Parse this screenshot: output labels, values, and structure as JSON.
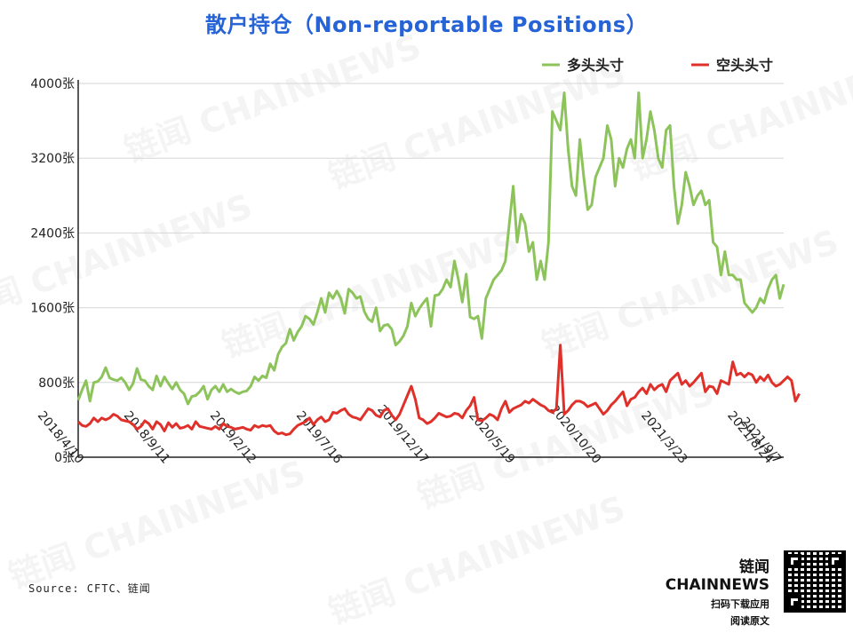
{
  "title": "散户持仓（Non-reportable Positions）",
  "chart_data": {
    "type": "line",
    "ylim": [
      0,
      4000
    ],
    "y_ticks": [
      "0张",
      "800张",
      "1600张",
      "2400张",
      "3200张",
      "4000张"
    ],
    "y_tick_values": [
      0,
      800,
      1600,
      2400,
      3200,
      4000
    ],
    "x_tick_labels": [
      "2018/4/10",
      "2018/9/11",
      "2019/2/12",
      "2019/7/16",
      "2019/12/17",
      "2020/5/19",
      "2020/10/20",
      "2021/3/23",
      "2021/8/24",
      "2021/9/7"
    ],
    "x_tick_index": [
      0,
      22,
      44,
      66,
      88,
      110,
      132,
      154,
      176,
      178
    ],
    "legend_position": "top-right",
    "grid": "horizontal",
    "colors": {
      "long": "#8dc35b",
      "short": "#e0302a"
    },
    "series": [
      {
        "name": "多头头寸",
        "values": [
          610,
          720,
          820,
          600,
          800,
          810,
          860,
          960,
          850,
          830,
          820,
          850,
          800,
          720,
          790,
          950,
          830,
          820,
          760,
          720,
          870,
          760,
          860,
          790,
          730,
          800,
          720,
          680,
          570,
          650,
          660,
          700,
          760,
          620,
          720,
          760,
          700,
          780,
          700,
          730,
          700,
          680,
          700,
          710,
          760,
          860,
          820,
          870,
          850,
          1000,
          930,
          1100,
          1180,
          1220,
          1370,
          1250,
          1340,
          1400,
          1510,
          1480,
          1420,
          1550,
          1700,
          1550,
          1760,
          1700,
          1780,
          1700,
          1540,
          1800,
          1760,
          1700,
          1720,
          1560,
          1480,
          1450,
          1600,
          1350,
          1410,
          1420,
          1370,
          1200,
          1240,
          1300,
          1400,
          1650,
          1510,
          1590,
          1650,
          1700,
          1400,
          1730,
          1740,
          1800,
          1900,
          1820,
          2100,
          1900,
          1660,
          1960,
          1500,
          1480,
          1510,
          1270,
          1700,
          1800,
          1900,
          1950,
          2000,
          2100,
          2500,
          2900,
          2300,
          2600,
          2500,
          2200,
          2300,
          1900,
          2100,
          1900,
          2300,
          3700,
          3600,
          3500,
          3900,
          3300,
          2900,
          2800,
          3400,
          3000,
          2650,
          2700,
          3000,
          3100,
          3200,
          3550,
          3400,
          2900,
          3200,
          3100,
          3300,
          3400,
          3200,
          3900,
          3200,
          3400,
          3700,
          3500,
          3200,
          3100,
          3500,
          3550,
          2900,
          2500,
          2700,
          3050,
          2900,
          2700,
          2800,
          2850,
          2700,
          2750,
          2300,
          2250,
          1950,
          2200,
          1950,
          1950,
          1900,
          1900,
          1650,
          1600,
          1550,
          1600,
          1700,
          1650,
          1800,
          1900,
          1950,
          1700,
          1850
        ]
      },
      {
        "name": "空头头寸",
        "values": [
          380,
          340,
          330,
          360,
          420,
          380,
          420,
          400,
          420,
          460,
          440,
          400,
          390,
          380,
          350,
          300,
          330,
          390,
          360,
          300,
          380,
          350,
          280,
          370,
          320,
          360,
          310,
          320,
          340,
          300,
          380,
          330,
          320,
          310,
          300,
          330,
          300,
          360,
          330,
          320,
          300,
          310,
          320,
          300,
          290,
          340,
          320,
          340,
          330,
          340,
          280,
          250,
          260,
          240,
          250,
          300,
          340,
          360,
          380,
          420,
          350,
          400,
          430,
          380,
          400,
          480,
          470,
          500,
          520,
          460,
          430,
          420,
          400,
          460,
          520,
          500,
          450,
          430,
          500,
          520,
          450,
          400,
          460,
          560,
          660,
          760,
          620,
          420,
          400,
          360,
          380,
          420,
          470,
          450,
          430,
          440,
          470,
          460,
          420,
          500,
          550,
          640,
          400,
          390,
          420,
          460,
          440,
          400,
          520,
          600,
          480,
          520,
          540,
          560,
          600,
          580,
          620,
          590,
          560,
          540,
          500,
          480,
          520,
          1200,
          460,
          500,
          560,
          600,
          600,
          580,
          540,
          560,
          580,
          520,
          460,
          500,
          560,
          600,
          650,
          700,
          550,
          620,
          640,
          700,
          740,
          680,
          780,
          720,
          760,
          780,
          700,
          820,
          860,
          900,
          780,
          820,
          760,
          800,
          850,
          900,
          700,
          760,
          750,
          680,
          820,
          800,
          780,
          1020,
          880,
          900,
          860,
          900,
          880,
          800,
          860,
          820,
          880,
          800,
          760,
          780,
          820,
          860,
          820,
          600,
          680
        ]
      }
    ]
  },
  "watermark": "链闻 CHAINNEWS",
  "source": "Source: CFTC、链闻",
  "brand": {
    "name": "链闻 CHAINNEWS",
    "sub1": "扫码下载应用",
    "sub2": "阅读原文"
  }
}
